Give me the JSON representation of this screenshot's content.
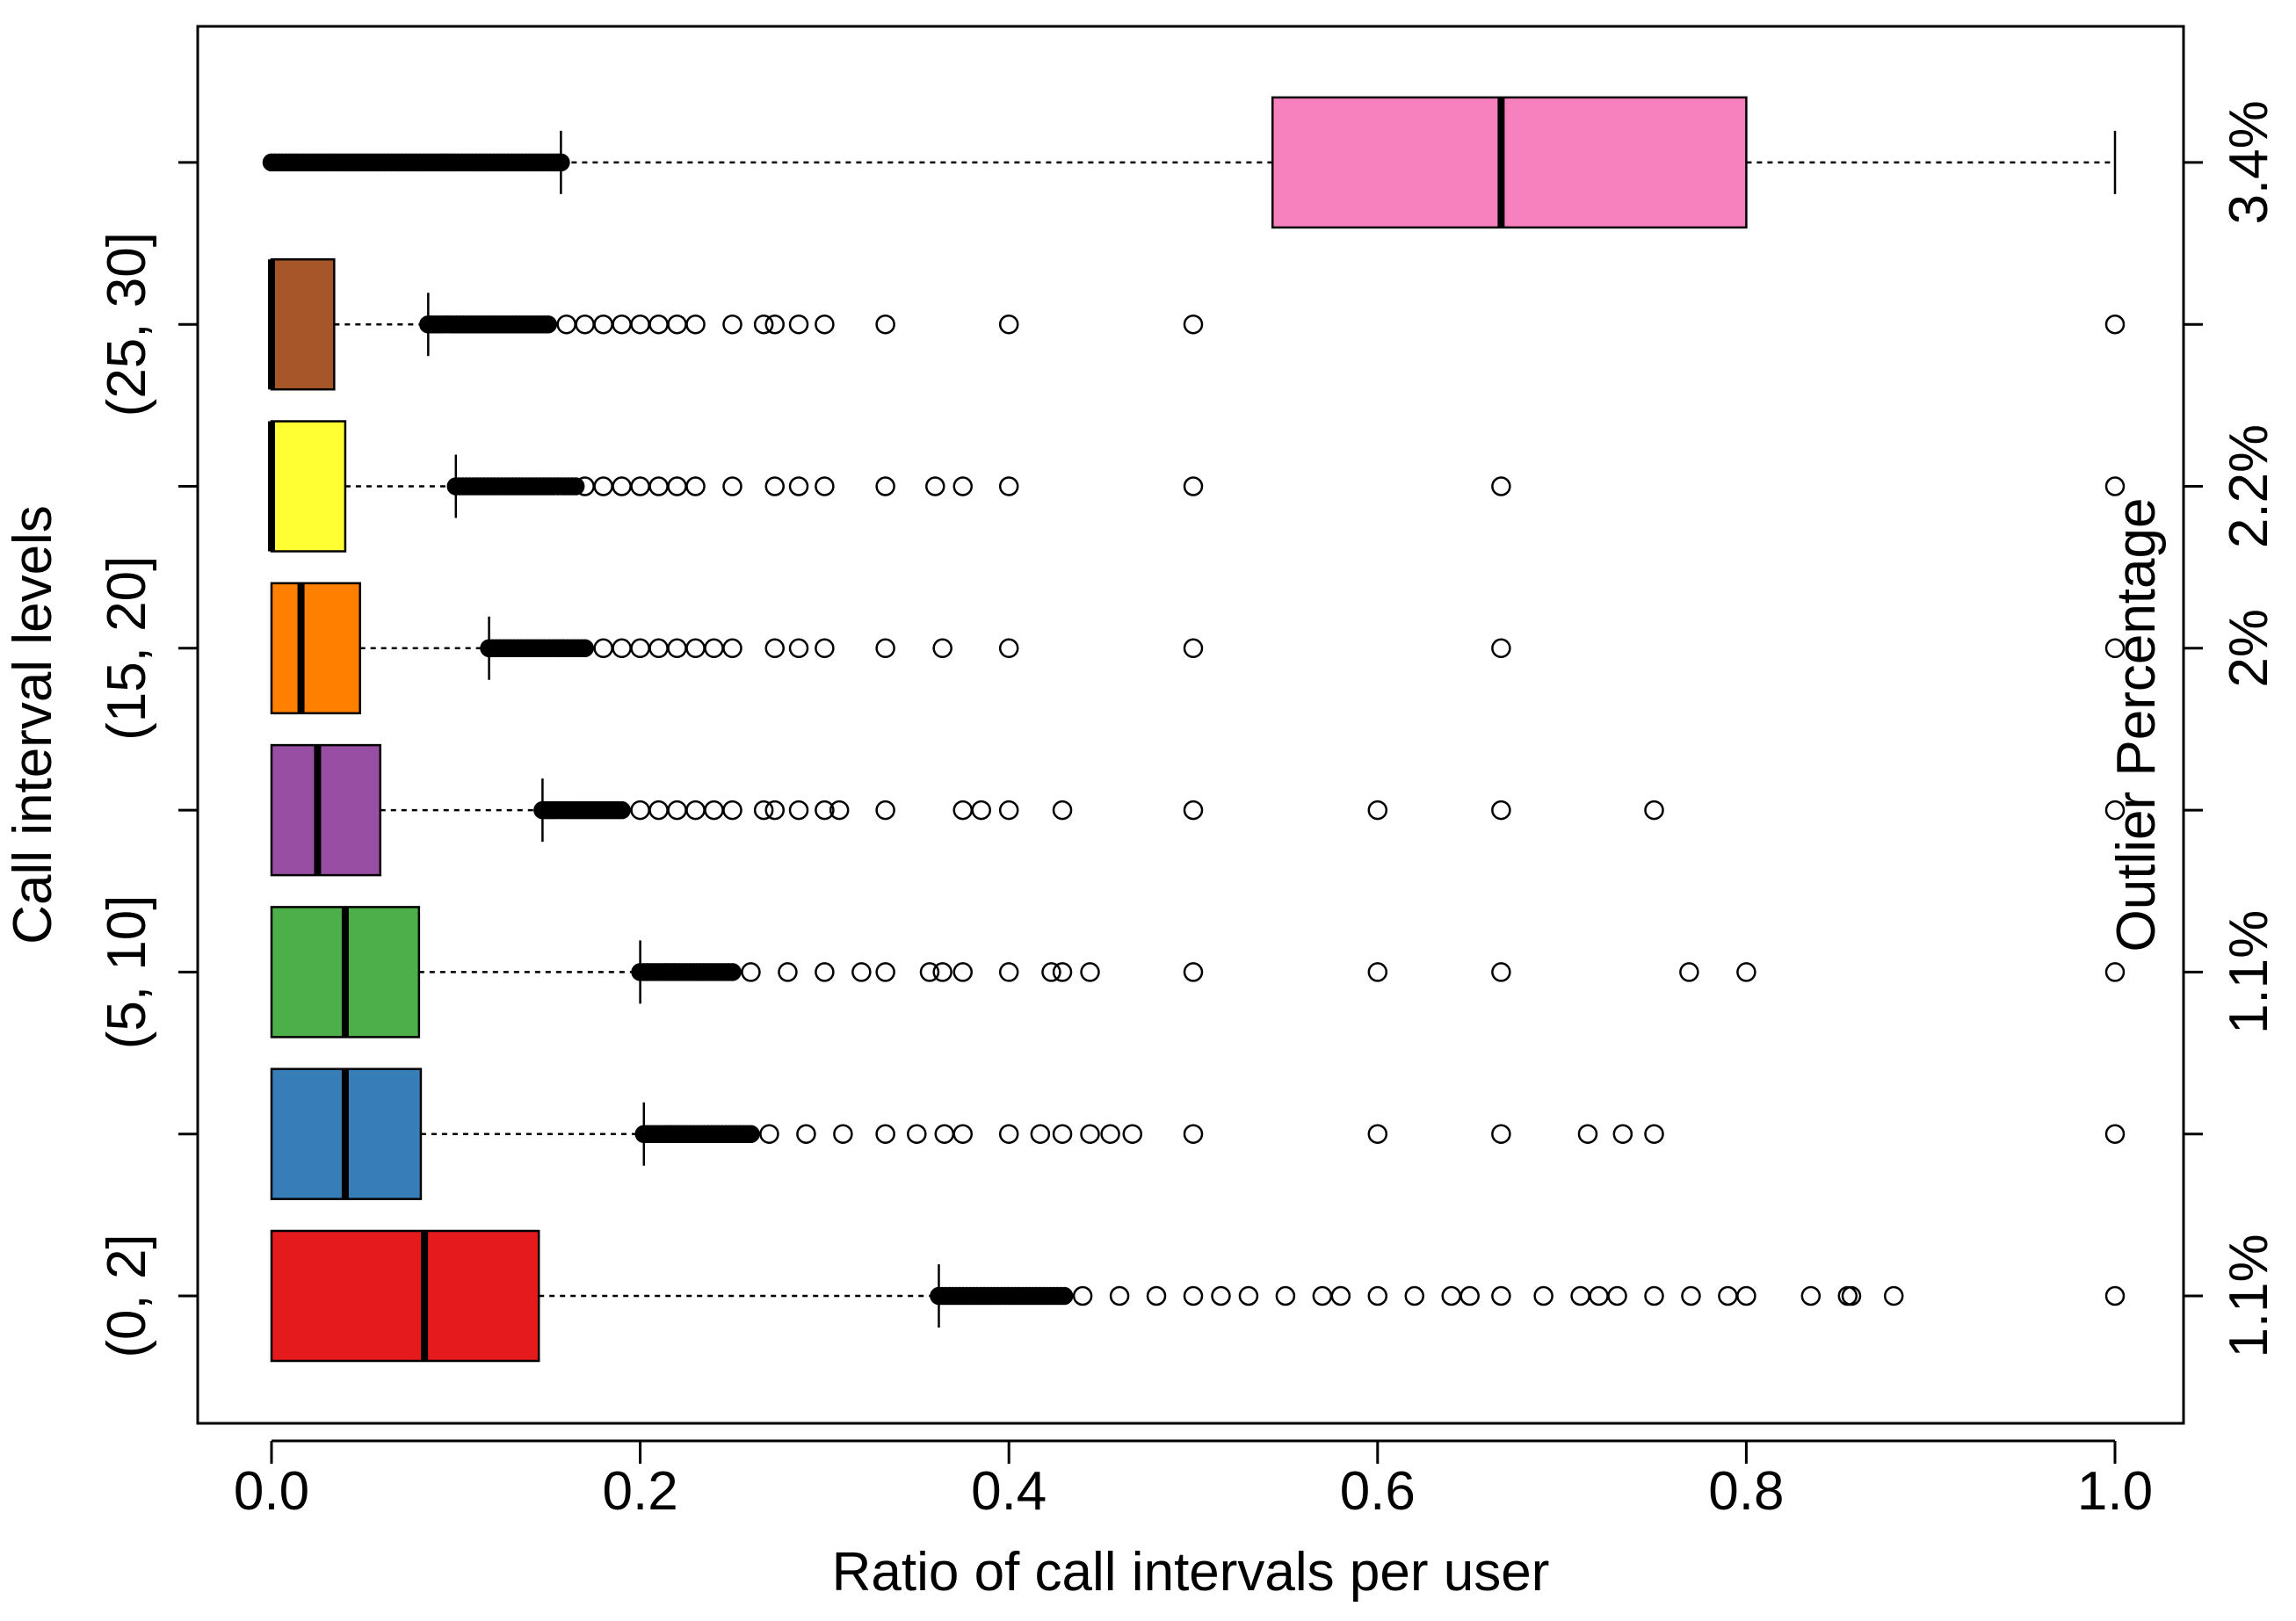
{
  "chart_data": {
    "type": "boxplot",
    "orientation": "horizontal",
    "xlabel": "Ratio of call intervals per user",
    "ylabel_left": "Call interval levels",
    "ylabel_right": "Outlier Percentage",
    "xlim": [
      0,
      1
    ],
    "x_ticks": [
      0.0,
      0.2,
      0.4,
      0.6,
      0.8,
      1.0
    ],
    "x_tick_labels": [
      "0.0",
      "0.2",
      "0.4",
      "0.6",
      "0.8",
      "1.0"
    ],
    "left_tick_labels": [
      "(0, 2]",
      "(5, 10]",
      "(15, 20]",
      "(25, 30]"
    ],
    "left_tick_groups": [
      1,
      3,
      5,
      7
    ],
    "right_tick_labels": [
      "1.1%",
      "1.1%",
      "2%",
      "2.2%",
      "3.4%"
    ],
    "right_tick_groups": [
      1,
      3,
      5,
      6,
      8
    ],
    "groups": [
      {
        "position": 1,
        "color": "#e41a1c",
        "min": 0.0,
        "q1": 0.0,
        "median": 0.083,
        "q3": 0.145,
        "whisker_high": 0.362,
        "outlier_dense_range": [
          0.362,
          0.43
        ],
        "outliers": [
          0.44,
          0.46,
          0.48,
          0.5,
          0.515,
          0.53,
          0.55,
          0.57,
          0.58,
          0.6,
          0.62,
          0.64,
          0.65,
          0.667,
          0.69,
          0.71,
          0.72,
          0.73,
          0.75,
          0.77,
          0.79,
          0.8,
          0.835,
          0.855,
          0.857,
          0.88,
          1.0
        ]
      },
      {
        "position": 2,
        "color": "#377eb8",
        "min": 0.0,
        "q1": 0.0,
        "median": 0.04,
        "q3": 0.081,
        "whisker_high": 0.202,
        "outlier_dense_range": [
          0.202,
          0.26
        ],
        "outliers": [
          0.27,
          0.29,
          0.31,
          0.333,
          0.35,
          0.365,
          0.375,
          0.4,
          0.417,
          0.429,
          0.444,
          0.455,
          0.467,
          0.5,
          0.6,
          0.667,
          0.714,
          0.733,
          0.75,
          1.0
        ]
      },
      {
        "position": 3,
        "color": "#4daf4a",
        "min": 0.0,
        "q1": 0.0,
        "median": 0.04,
        "q3": 0.08,
        "whisker_high": 0.2,
        "outlier_dense_range": [
          0.2,
          0.25
        ],
        "outliers": [
          0.26,
          0.28,
          0.3,
          0.32,
          0.333,
          0.357,
          0.364,
          0.375,
          0.4,
          0.423,
          0.429,
          0.444,
          0.5,
          0.6,
          0.667,
          0.769,
          0.8,
          1.0
        ]
      },
      {
        "position": 4,
        "color": "#984ea3",
        "min": 0.0,
        "q1": 0.0,
        "median": 0.025,
        "q3": 0.059,
        "whisker_high": 0.147,
        "outlier_dense_range": [
          0.147,
          0.19
        ],
        "outliers": [
          0.2,
          0.21,
          0.22,
          0.23,
          0.24,
          0.25,
          0.267,
          0.273,
          0.286,
          0.3,
          0.308,
          0.333,
          0.375,
          0.385,
          0.4,
          0.429,
          0.5,
          0.6,
          0.667,
          0.75,
          1.0
        ]
      },
      {
        "position": 5,
        "color": "#ff7f00",
        "min": 0.0,
        "q1": 0.0,
        "median": 0.016,
        "q3": 0.048,
        "whisker_high": 0.118,
        "outlier_dense_range": [
          0.118,
          0.17
        ],
        "outliers": [
          0.18,
          0.19,
          0.2,
          0.21,
          0.22,
          0.23,
          0.24,
          0.25,
          0.273,
          0.286,
          0.3,
          0.333,
          0.364,
          0.4,
          0.5,
          0.667,
          1.0
        ]
      },
      {
        "position": 6,
        "color": "#ffff33",
        "min": 0.0,
        "q1": 0.0,
        "median": 0.0,
        "q3": 0.04,
        "whisker_high": 0.1,
        "outlier_dense_range": [
          0.1,
          0.165
        ],
        "outliers": [
          0.17,
          0.18,
          0.19,
          0.2,
          0.21,
          0.22,
          0.23,
          0.25,
          0.273,
          0.286,
          0.3,
          0.333,
          0.36,
          0.375,
          0.4,
          0.5,
          0.667,
          1.0
        ]
      },
      {
        "position": 7,
        "color": "#a65628",
        "min": 0.0,
        "q1": 0.0,
        "median": 0.0,
        "q3": 0.034,
        "whisker_high": 0.085,
        "outlier_dense_range": [
          0.085,
          0.15
        ],
        "outliers": [
          0.16,
          0.17,
          0.18,
          0.19,
          0.2,
          0.21,
          0.22,
          0.23,
          0.25,
          0.267,
          0.273,
          0.286,
          0.3,
          0.333,
          0.4,
          0.5,
          1.0
        ]
      },
      {
        "position": 8,
        "color": "#f781bf",
        "min": 0.0,
        "q1": 0.543,
        "median": 0.667,
        "q3": 0.8,
        "whisker_high": 1.0,
        "whisker_low": 0.157,
        "outlier_dense_range": [
          0.0,
          0.157
        ],
        "outliers": []
      }
    ]
  }
}
